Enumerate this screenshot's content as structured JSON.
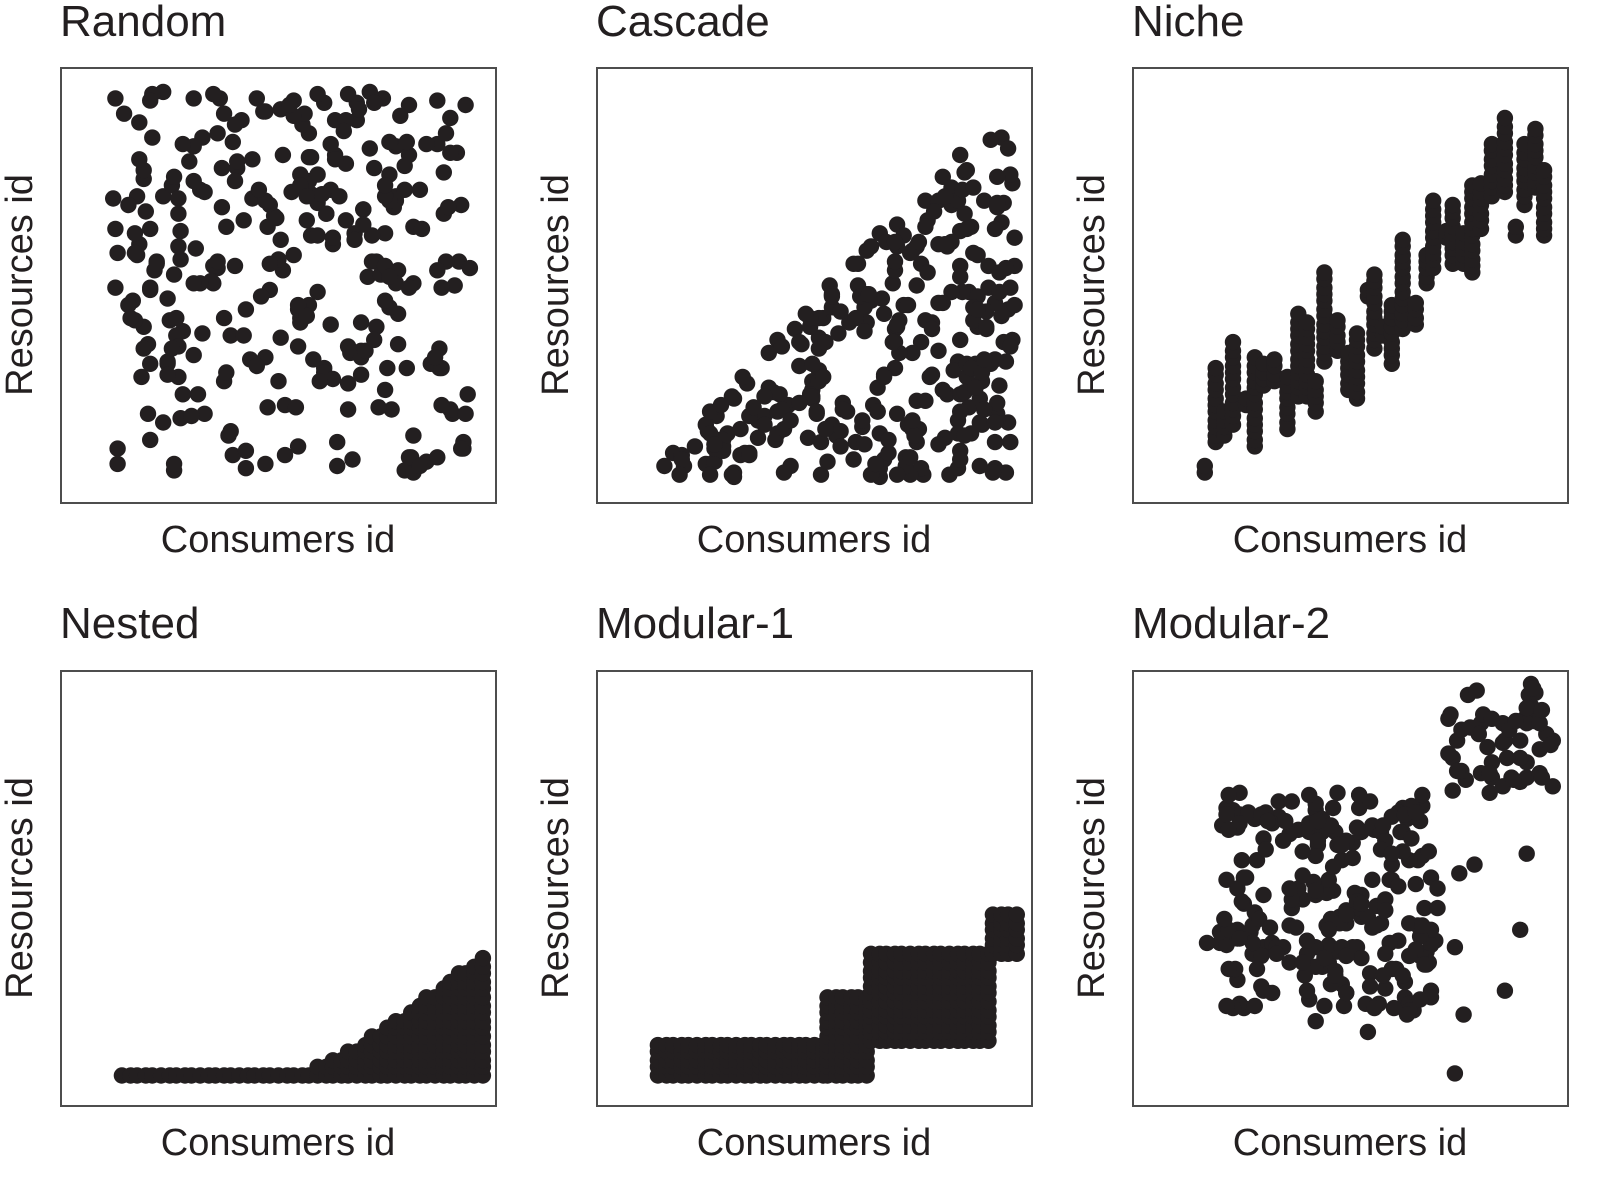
{
  "figure": {
    "dot_color": "#231f20",
    "frame_color": "#4d4d4d",
    "background": "#ffffff"
  },
  "chart_data": [
    {
      "type": "scatter",
      "title": "Random",
      "xlabel": "Consumers id",
      "ylabel": "Resources id",
      "xlim": [
        0,
        100
      ],
      "ylim": [
        0,
        100
      ],
      "pattern": "random",
      "seed": 7,
      "n_points": 300
    },
    {
      "type": "scatter",
      "title": "Cascade",
      "xlabel": "Consumers id",
      "ylabel": "Resources id",
      "xlim": [
        0,
        100
      ],
      "ylim": [
        0,
        100
      ],
      "pattern": "cascade",
      "seed": 11,
      "n_points": 300
    },
    {
      "type": "scatter",
      "title": "Niche",
      "xlabel": "Consumers id",
      "ylabel": "Resources id",
      "xlim": [
        0,
        100
      ],
      "ylim": [
        0,
        100
      ],
      "pattern": "niche",
      "seed": 23,
      "n_points": 300
    },
    {
      "type": "scatter",
      "title": "Nested",
      "xlabel": "Consumers id",
      "ylabel": "Resources id",
      "xlim": [
        0,
        100
      ],
      "ylim": [
        0,
        100
      ],
      "pattern": "nested",
      "seed": 5,
      "n_points": 300
    },
    {
      "type": "scatter",
      "title": "Modular-1",
      "xlabel": "Consumers id",
      "ylabel": "Resources id",
      "xlim": [
        0,
        100
      ],
      "ylim": [
        0,
        100
      ],
      "pattern": "modular1",
      "seed": 3,
      "n_points": 300
    },
    {
      "type": "scatter",
      "title": "Modular-2",
      "xlabel": "Consumers id",
      "ylabel": "Resources id",
      "xlim": [
        0,
        100
      ],
      "ylim": [
        0,
        100
      ],
      "pattern": "modular2",
      "seed": 19,
      "n_points": 300
    }
  ]
}
